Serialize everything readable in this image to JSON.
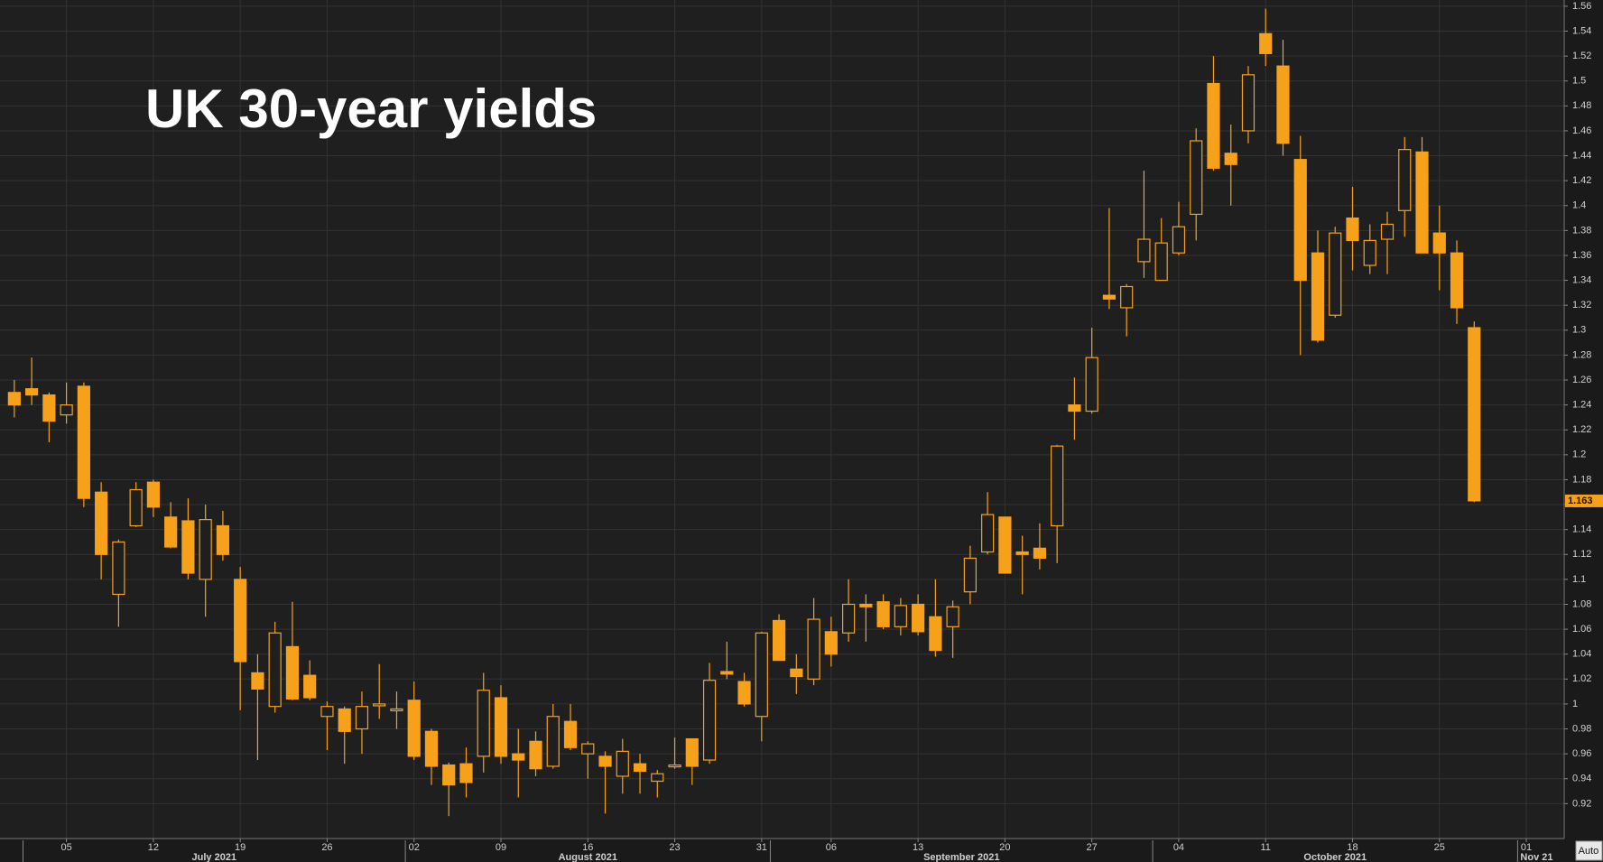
{
  "chart_data": {
    "type": "candlestick",
    "title": "UK 30-year yields",
    "categories": [
      null,
      null,
      null,
      "05",
      null,
      null,
      null,
      null,
      "12",
      null,
      null,
      null,
      null,
      "19",
      null,
      null,
      null,
      null,
      "26",
      null,
      null,
      null,
      null,
      "02",
      null,
      null,
      null,
      null,
      "09",
      null,
      null,
      null,
      null,
      "16",
      null,
      null,
      null,
      null,
      "23",
      null,
      null,
      null,
      null,
      "31",
      null,
      null,
      null,
      "06",
      null,
      null,
      null,
      null,
      "13",
      null,
      null,
      null,
      null,
      "20",
      null,
      null,
      null,
      null,
      "27",
      null,
      null,
      null,
      null,
      "04",
      null,
      null,
      null,
      null,
      "11",
      null,
      null,
      null,
      null,
      "18",
      null,
      null,
      null,
      null,
      "25",
      null,
      null,
      null,
      null,
      "01"
    ],
    "x_groups": [
      {
        "label": "July 2021",
        "from": 1,
        "to": 22
      },
      {
        "label": "August 2021",
        "from": 23,
        "to": 43
      },
      {
        "label": "September 2021",
        "from": 44,
        "to": 65
      },
      {
        "label": "October 2021",
        "from": 66,
        "to": 86
      },
      {
        "label": "Nov 21",
        "from": 87,
        "to": 87
      }
    ],
    "series": [
      {
        "color": "#f7a11a",
        "open": [
          1.25,
          1.253,
          1.248,
          1.232,
          1.255,
          1.17,
          1.088,
          1.143,
          1.178,
          1.15,
          1.147,
          1.1,
          1.143,
          1.1,
          1.025,
          0.998,
          1.046,
          1.023,
          0.99,
          0.996,
          0.98,
          0.999,
          0.995,
          1.003,
          0.978,
          0.951,
          0.952,
          0.958,
          1.005,
          0.96,
          0.97,
          0.95,
          0.986,
          0.96,
          0.958,
          0.942,
          0.952,
          0.938,
          0.95,
          0.972,
          0.955,
          1.026,
          1.018,
          0.99,
          1.067,
          1.028,
          1.02,
          1.058,
          1.057,
          1.08,
          1.082,
          1.062,
          1.08,
          1.07,
          1.062,
          1.09,
          1.122,
          1.15,
          1.122,
          1.125,
          1.143,
          1.24,
          1.235,
          1.328,
          1.318,
          1.355,
          1.34,
          1.362,
          1.393,
          1.498,
          1.442,
          1.46,
          1.538,
          1.512,
          1.437,
          1.362,
          1.312,
          1.39,
          1.352,
          1.373,
          1.396,
          1.443,
          1.378,
          1.362,
          1.302,
          null,
          null,
          null
        ],
        "high": [
          1.26,
          1.278,
          1.25,
          1.258,
          1.258,
          1.178,
          1.132,
          1.178,
          1.18,
          1.162,
          1.165,
          1.16,
          1.155,
          1.11,
          1.04,
          1.066,
          1.082,
          1.035,
          1.002,
          0.998,
          1.01,
          1.032,
          1.01,
          1.018,
          0.98,
          0.953,
          0.965,
          1.025,
          1.015,
          0.98,
          0.978,
          1.0,
          1.0,
          0.97,
          0.962,
          0.972,
          0.96,
          0.947,
          0.973,
          0.972,
          1.033,
          1.05,
          1.025,
          1.058,
          1.072,
          1.04,
          1.085,
          1.07,
          1.1,
          1.088,
          1.088,
          1.085,
          1.088,
          1.1,
          1.083,
          1.127,
          1.17,
          1.15,
          1.135,
          1.145,
          1.208,
          1.262,
          1.302,
          1.398,
          1.337,
          1.428,
          1.39,
          1.403,
          1.462,
          1.52,
          1.465,
          1.512,
          1.558,
          1.533,
          1.456,
          1.38,
          1.383,
          1.415,
          1.385,
          1.395,
          1.455,
          1.455,
          1.4,
          1.372,
          1.307,
          null,
          null,
          null
        ],
        "low": [
          1.23,
          1.24,
          1.21,
          1.225,
          1.158,
          1.1,
          1.062,
          1.142,
          1.15,
          1.125,
          1.1,
          1.07,
          1.115,
          0.995,
          0.955,
          0.993,
          1.003,
          1.003,
          0.963,
          0.952,
          0.96,
          0.988,
          0.98,
          0.955,
          0.935,
          0.91,
          0.925,
          0.945,
          0.952,
          0.925,
          0.942,
          0.948,
          0.963,
          0.94,
          0.912,
          0.928,
          0.928,
          0.925,
          0.948,
          0.935,
          0.952,
          1.02,
          0.998,
          0.97,
          1.035,
          1.008,
          1.015,
          1.03,
          1.05,
          1.05,
          1.06,
          1.055,
          1.055,
          1.038,
          1.037,
          1.08,
          1.12,
          1.105,
          1.088,
          1.108,
          1.113,
          1.212,
          1.233,
          1.317,
          1.295,
          1.342,
          1.34,
          1.36,
          1.372,
          1.428,
          1.4,
          1.45,
          1.512,
          1.44,
          1.28,
          1.29,
          1.31,
          1.348,
          1.345,
          1.345,
          1.375,
          1.362,
          1.332,
          1.305,
          1.162,
          null,
          null,
          null
        ],
        "close": [
          1.24,
          1.248,
          1.227,
          1.24,
          1.165,
          1.12,
          1.13,
          1.172,
          1.158,
          1.126,
          1.105,
          1.148,
          1.12,
          1.034,
          1.012,
          1.057,
          1.004,
          1.005,
          0.998,
          0.978,
          0.998,
          1.0,
          0.996,
          0.958,
          0.95,
          0.935,
          0.937,
          1.011,
          0.958,
          0.955,
          0.948,
          0.99,
          0.965,
          0.968,
          0.95,
          0.962,
          0.946,
          0.944,
          0.951,
          0.95,
          1.019,
          1.024,
          1.0,
          1.057,
          1.035,
          1.022,
          1.068,
          1.04,
          1.08,
          1.078,
          1.062,
          1.079,
          1.058,
          1.043,
          1.078,
          1.117,
          1.152,
          1.105,
          1.12,
          1.117,
          1.207,
          1.235,
          1.278,
          1.325,
          1.335,
          1.373,
          1.37,
          1.383,
          1.452,
          1.43,
          1.433,
          1.505,
          1.522,
          1.45,
          1.34,
          1.292,
          1.378,
          1.372,
          1.372,
          1.385,
          1.445,
          1.362,
          1.362,
          1.318,
          1.163,
          null,
          null,
          null
        ]
      }
    ],
    "ylim": [
      0.892,
      1.565
    ],
    "yticks": [
      0.92,
      0.94,
      0.96,
      0.98,
      1,
      1.02,
      1.04,
      1.06,
      1.08,
      1.1,
      1.12,
      1.14,
      1.16,
      1.18,
      1.2,
      1.22,
      1.24,
      1.26,
      1.28,
      1.3,
      1.32,
      1.34,
      1.36,
      1.38,
      1.4,
      1.42,
      1.44,
      1.46,
      1.48,
      1.5,
      1.52,
      1.54,
      1.56
    ],
    "grid": true
  },
  "controls": {
    "auto_button": "Auto"
  }
}
